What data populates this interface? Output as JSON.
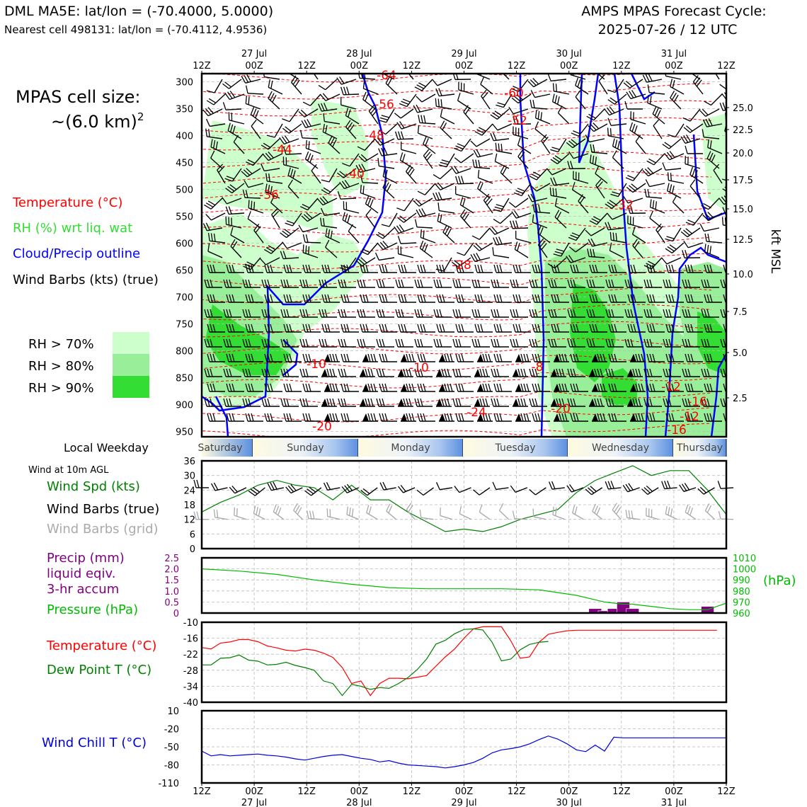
{
  "header": {
    "title_left": "DML MA5E: lat/lon = (-70.4000, 5.0000)",
    "subtitle_left": "Nearest cell 498131: lat/lon = (-70.4112, 4.9536)",
    "title_right_1": "AMPS MPAS Forecast Cycle:",
    "title_right_2": "2025-07-26 / 12 UTC"
  },
  "time_axis": {
    "top_ticks": [
      "12Z",
      "00Z",
      "12Z",
      "00Z",
      "12Z",
      "00Z",
      "12Z",
      "00Z",
      "12Z",
      "00Z",
      "12Z"
    ],
    "date_labels": [
      "27 Jul",
      "28 Jul",
      "29 Jul",
      "30 Jul",
      "31 Jul"
    ],
    "bottom_ticks": [
      "12Z",
      "00Z",
      "12Z",
      "00Z",
      "12Z",
      "00Z",
      "12Z",
      "00Z",
      "12Z",
      "00Z",
      "12Z"
    ]
  },
  "left_panel": {
    "cell_size_line1": "MPAS cell size:",
    "cell_size_line2": "~(6.0 km)",
    "cell_size_sup": "2",
    "legend_temperature": "Temperature (°C)",
    "legend_rh": "RH (%) wrt liq. wat",
    "legend_cloud": "Cloud/Precip outline",
    "legend_wind": "Wind Barbs (kts) (true)",
    "rh_key": [
      "RH > 70%",
      "RH > 80%",
      "RH > 90%"
    ],
    "rh_colors": [
      "#ccffcc",
      "#99ee99",
      "#33dd33"
    ]
  },
  "colors": {
    "temperature": "#ff0000",
    "rh": "#33cc33",
    "cloud": "#0000ff",
    "wind_speed": "#008000",
    "grid_barbs": "#aaaaaa",
    "precip": "#800080",
    "pressure": "#00bb00",
    "dewpoint": "#008000",
    "windchill": "#0000dd"
  },
  "weekday_bar": {
    "label": "Local Weekday",
    "days": [
      "Saturday",
      "Sunday",
      "Monday",
      "Tuesday",
      "Wednesday",
      "Thursday"
    ]
  },
  "cross_section": {
    "pressure_ticks": [
      "300",
      "350",
      "400",
      "450",
      "500",
      "550",
      "600",
      "650",
      "700",
      "750",
      "800",
      "850",
      "900",
      "950"
    ],
    "kft_ticks": [
      "25.0",
      "22.5",
      "20.0",
      "17.5",
      "15.0",
      "12.5",
      "10.0",
      "7.5",
      "5.0",
      "2.5"
    ],
    "kft_label": "kft MSL",
    "temp_labels": [
      "-64",
      "-60",
      "-56",
      "-52",
      "-48",
      "-44",
      "-40",
      "-36",
      "-32",
      "-28",
      "-24",
      "-20",
      "-20",
      "-16",
      "-12",
      "-10",
      "-10",
      "-8",
      "-12",
      "-16"
    ]
  },
  "wind_panel": {
    "title": "Wind at 10m AGL",
    "legend_speed": "Wind Spd (kts)",
    "legend_barbs": "Wind Barbs (true)",
    "legend_grid": "Wind Barbs (grid)",
    "y_ticks": [
      "36",
      "30",
      "24",
      "18",
      "12",
      "6",
      "0"
    ]
  },
  "precip_panel": {
    "legend_precip_1": "Precip (mm)",
    "legend_precip_2": "liquid eqiv.",
    "legend_precip_3": "3-hr accum",
    "legend_pressure": "Pressure (hPa)",
    "left_ticks": [
      "2.5",
      "2.0",
      "1.5",
      "1.0",
      "0.5",
      "0"
    ],
    "right_ticks": [
      "1010",
      "1000",
      "990",
      "980",
      "970",
      "960"
    ],
    "right_unit": "(hPa)"
  },
  "temp_panel": {
    "legend_temp": "Temperature (°C)",
    "legend_dew": "Dew Point T (°C)",
    "y_ticks": [
      "-10",
      "-16",
      "-22",
      "-28",
      "-34",
      "-40"
    ]
  },
  "chill_panel": {
    "legend": "Wind Chill T (°C)",
    "y_ticks": [
      "10",
      "-20",
      "-50",
      "-80",
      "-110"
    ]
  },
  "chart_data": [
    {
      "type": "line",
      "title": "Wind at 10m AGL",
      "x_hours": [
        0,
        6,
        12,
        18,
        24,
        30,
        36,
        42,
        48,
        54,
        60,
        66,
        72,
        78,
        84,
        90,
        96,
        102,
        108,
        114,
        120,
        126,
        132,
        138,
        144,
        150,
        156,
        162,
        168
      ],
      "series": [
        {
          "name": "Wind Spd (kts)",
          "values": [
            15,
            19,
            22,
            26,
            28,
            26,
            25,
            20,
            26,
            20,
            20,
            15,
            11,
            7,
            8,
            7,
            9,
            12,
            14,
            16,
            23,
            28,
            31,
            34,
            30,
            32,
            32,
            24,
            14
          ]
        },
        {
          "name": "",
          "values": [
            12,
            10,
            11,
            12,
            11,
            8,
            13,
            24,
            8,
            7
          ]
        }
      ],
      "ylim": [
        0,
        36
      ]
    },
    {
      "type": "bar",
      "title": "Precip (mm) liquid eqiv. 3-hr accum",
      "x_hours": [
        0,
        12,
        24,
        36,
        48,
        60,
        72,
        84,
        96,
        108,
        120,
        126,
        129,
        132,
        135,
        138,
        141,
        144,
        150,
        156,
        162,
        165,
        168
      ],
      "precip_hours": [
        126,
        129,
        132,
        135,
        138,
        162
      ],
      "precip_values": [
        0.2,
        0.1,
        0.2,
        0.5,
        0.2,
        0.3
      ],
      "pressure_values": [
        1000,
        998,
        995,
        990,
        986,
        983,
        982,
        982,
        982,
        981,
        976,
        972,
        970,
        969,
        968,
        968,
        967,
        966,
        964,
        963,
        963,
        966,
        969
      ],
      "ylim_precip": [
        0,
        2.5
      ],
      "ylim_pressure": [
        960,
        1010
      ]
    },
    {
      "type": "line",
      "title": "Temperature / Dew Point",
      "x_hours": [
        0,
        3,
        6,
        9,
        12,
        15,
        18,
        21,
        24,
        27,
        30,
        33,
        36,
        39,
        42,
        45,
        48,
        51,
        54,
        57,
        60,
        63,
        66,
        69,
        72,
        75,
        78,
        81,
        84,
        87,
        90,
        93,
        96,
        99,
        102,
        105,
        108,
        111,
        114,
        117,
        120,
        123,
        126,
        129,
        132,
        135,
        138,
        141,
        144,
        147,
        150,
        153,
        156,
        159,
        162,
        165,
        168
      ],
      "series": [
        {
          "name": "Temperature (°C)",
          "values": [
            -19.5,
            -20,
            -17.8,
            -17.4,
            -16.5,
            -16.5,
            -17.3,
            -18.9,
            -19.6,
            -20.5,
            -20.8,
            -20.1,
            -20.5,
            -21.6,
            -23.2,
            -27,
            -33,
            -32,
            -37.5,
            -33,
            -31,
            -31,
            -31.2,
            -30.6,
            -30,
            -26.5,
            -23,
            -20,
            -16,
            -12.5,
            -11.7,
            -11.7,
            -11.7,
            -17,
            -23.5,
            -23,
            -17.5,
            -14.5,
            -13.8,
            -13.2,
            -13,
            -13,
            -13,
            -13,
            -13,
            -13,
            -13,
            -13,
            -13,
            -13,
            -13,
            -13,
            -13,
            -13,
            -13,
            -13,
            -13
          ]
        },
        {
          "name": "Dew Point T (°C)",
          "values": [
            -26,
            -26,
            -23.5,
            -23.3,
            -22.3,
            -24.2,
            -24.6,
            -26,
            -25.8,
            -25,
            -26.2,
            -27,
            -28,
            -32,
            -33,
            -37.5,
            -33.3,
            -34,
            -35.2,
            -34.5,
            -34.8,
            -33,
            -30.8,
            -27.8,
            -23.8,
            -18.2,
            -16.8,
            -14.3,
            -12.7,
            -12.5,
            -12.9,
            -17.5,
            -24.5,
            -23.8,
            -20.3,
            -18.3,
            -17.5,
            -17.2
          ]
        }
      ],
      "ylim": [
        -40,
        -10
      ]
    },
    {
      "type": "line",
      "title": "Wind Chill T (°C)",
      "x_hours": [
        0,
        3,
        6,
        9,
        12,
        15,
        18,
        21,
        24,
        27,
        30,
        33,
        36,
        39,
        42,
        45,
        48,
        51,
        54,
        57,
        60,
        63,
        66,
        69,
        72,
        75,
        78,
        81,
        84,
        87,
        90,
        93,
        96,
        99,
        102,
        105,
        108,
        111,
        114,
        117,
        120,
        123,
        126,
        129,
        132,
        135,
        138,
        141,
        144,
        147,
        150,
        153,
        156,
        159,
        162,
        165,
        168
      ],
      "series": [
        {
          "name": "Wind Chill T (°C)",
          "values": [
            -57,
            -65,
            -63,
            -65,
            -64,
            -63,
            -62,
            -64,
            -65,
            -67,
            -70,
            -72,
            -69,
            -66,
            -64,
            -63,
            -66,
            -69,
            -71,
            -75,
            -73,
            -77,
            -80,
            -81,
            -82,
            -83,
            -85,
            -83,
            -80,
            -76,
            -69,
            -60,
            -55,
            -53,
            -50,
            -45,
            -38,
            -32,
            -37,
            -45,
            -55,
            -58,
            -47,
            -57,
            -34,
            -35,
            -35,
            -35,
            -35,
            -35,
            -35,
            -35,
            -35,
            -35,
            -35,
            -35,
            -35
          ]
        }
      ],
      "ylim": [
        -110,
        10
      ]
    }
  ]
}
